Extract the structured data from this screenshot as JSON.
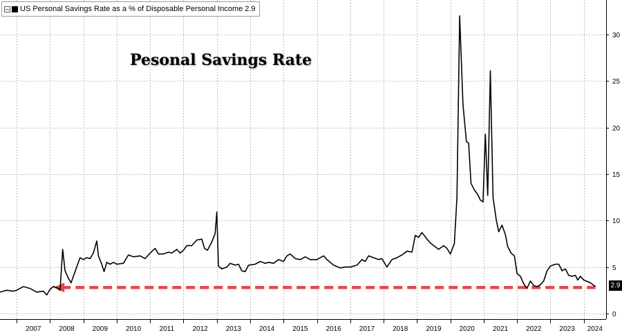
{
  "chart_data": {
    "type": "line",
    "title": "",
    "xlabel": "",
    "ylabel": "",
    "annotation": "Pesonal Savings Rate",
    "series": [
      {
        "name": "US Personal Savings Rate as a % of Disposable Personal Income",
        "last_value": "2.9",
        "color": "#000000",
        "points": [
          [
            2006.5,
            2.3
          ],
          [
            2006.7,
            2.5
          ],
          [
            2006.9,
            2.4
          ],
          [
            2007.0,
            2.5
          ],
          [
            2007.2,
            2.9
          ],
          [
            2007.4,
            2.7
          ],
          [
            2007.6,
            2.3
          ],
          [
            2007.8,
            2.4
          ],
          [
            2007.9,
            2.0
          ],
          [
            2008.0,
            2.6
          ],
          [
            2008.1,
            2.9
          ],
          [
            2008.2,
            2.8
          ],
          [
            2008.3,
            2.5
          ],
          [
            2008.38,
            6.9
          ],
          [
            2008.45,
            4.6
          ],
          [
            2008.55,
            3.8
          ],
          [
            2008.63,
            3.3
          ],
          [
            2008.75,
            4.5
          ],
          [
            2008.9,
            6.0
          ],
          [
            2009.0,
            5.8
          ],
          [
            2009.1,
            6.0
          ],
          [
            2009.2,
            5.9
          ],
          [
            2009.3,
            6.5
          ],
          [
            2009.4,
            7.8
          ],
          [
            2009.45,
            6.2
          ],
          [
            2009.55,
            5.3
          ],
          [
            2009.62,
            4.5
          ],
          [
            2009.7,
            5.5
          ],
          [
            2009.8,
            5.3
          ],
          [
            2009.9,
            5.5
          ],
          [
            2010.0,
            5.3
          ],
          [
            2010.2,
            5.4
          ],
          [
            2010.35,
            6.3
          ],
          [
            2010.5,
            6.1
          ],
          [
            2010.7,
            6.2
          ],
          [
            2010.85,
            5.9
          ],
          [
            2011.0,
            6.5
          ],
          [
            2011.15,
            7.0
          ],
          [
            2011.25,
            6.4
          ],
          [
            2011.4,
            6.4
          ],
          [
            2011.55,
            6.6
          ],
          [
            2011.65,
            6.5
          ],
          [
            2011.8,
            6.9
          ],
          [
            2011.9,
            6.5
          ],
          [
            2012.0,
            6.8
          ],
          [
            2012.1,
            7.3
          ],
          [
            2012.25,
            7.3
          ],
          [
            2012.4,
            7.9
          ],
          [
            2012.55,
            8.0
          ],
          [
            2012.63,
            7.0
          ],
          [
            2012.72,
            6.8
          ],
          [
            2012.85,
            7.7
          ],
          [
            2012.95,
            8.6
          ],
          [
            2013.0,
            10.9
          ],
          [
            2013.05,
            5.1
          ],
          [
            2013.15,
            4.8
          ],
          [
            2013.3,
            5.0
          ],
          [
            2013.4,
            5.4
          ],
          [
            2013.55,
            5.2
          ],
          [
            2013.65,
            5.3
          ],
          [
            2013.75,
            4.6
          ],
          [
            2013.85,
            4.5
          ],
          [
            2013.95,
            5.2
          ],
          [
            2014.15,
            5.3
          ],
          [
            2014.3,
            5.6
          ],
          [
            2014.45,
            5.4
          ],
          [
            2014.55,
            5.5
          ],
          [
            2014.7,
            5.4
          ],
          [
            2014.85,
            5.8
          ],
          [
            2015.0,
            5.6
          ],
          [
            2015.1,
            6.2
          ],
          [
            2015.2,
            6.4
          ],
          [
            2015.35,
            5.9
          ],
          [
            2015.5,
            5.8
          ],
          [
            2015.65,
            6.1
          ],
          [
            2015.8,
            5.8
          ],
          [
            2016.0,
            5.8
          ],
          [
            2016.2,
            6.2
          ],
          [
            2016.3,
            5.8
          ],
          [
            2016.5,
            5.2
          ],
          [
            2016.7,
            4.9
          ],
          [
            2016.85,
            5.0
          ],
          [
            2017.0,
            5.0
          ],
          [
            2017.2,
            5.2
          ],
          [
            2017.35,
            5.8
          ],
          [
            2017.45,
            5.6
          ],
          [
            2017.55,
            6.2
          ],
          [
            2017.7,
            6.0
          ],
          [
            2017.85,
            5.8
          ],
          [
            2017.95,
            5.9
          ],
          [
            2018.1,
            5.0
          ],
          [
            2018.25,
            5.8
          ],
          [
            2018.4,
            6.0
          ],
          [
            2018.55,
            6.3
          ],
          [
            2018.7,
            6.7
          ],
          [
            2018.85,
            6.6
          ],
          [
            2018.95,
            8.4
          ],
          [
            2019.05,
            8.2
          ],
          [
            2019.15,
            8.7
          ],
          [
            2019.3,
            8.0
          ],
          [
            2019.4,
            7.6
          ],
          [
            2019.5,
            7.3
          ],
          [
            2019.65,
            6.9
          ],
          [
            2019.8,
            7.3
          ],
          [
            2019.9,
            7.0
          ],
          [
            2020.0,
            6.4
          ],
          [
            2020.12,
            7.5
          ],
          [
            2020.2,
            12.5
          ],
          [
            2020.28,
            32.0
          ],
          [
            2020.38,
            22.5
          ],
          [
            2020.48,
            18.5
          ],
          [
            2020.55,
            18.3
          ],
          [
            2020.62,
            14.0
          ],
          [
            2020.72,
            13.3
          ],
          [
            2020.82,
            12.8
          ],
          [
            2020.9,
            12.2
          ],
          [
            2020.98,
            12.0
          ],
          [
            2021.05,
            19.3
          ],
          [
            2021.12,
            12.7
          ],
          [
            2021.2,
            26.1
          ],
          [
            2021.28,
            12.5
          ],
          [
            2021.38,
            10.0
          ],
          [
            2021.45,
            8.8
          ],
          [
            2021.55,
            9.5
          ],
          [
            2021.65,
            8.5
          ],
          [
            2021.72,
            7.2
          ],
          [
            2021.82,
            6.5
          ],
          [
            2021.92,
            6.2
          ],
          [
            2022.0,
            4.3
          ],
          [
            2022.1,
            4.0
          ],
          [
            2022.2,
            3.2
          ],
          [
            2022.3,
            2.7
          ],
          [
            2022.4,
            3.5
          ],
          [
            2022.5,
            3.0
          ],
          [
            2022.6,
            2.9
          ],
          [
            2022.7,
            3.1
          ],
          [
            2022.8,
            3.5
          ],
          [
            2022.9,
            4.6
          ],
          [
            2023.0,
            5.1
          ],
          [
            2023.15,
            5.3
          ],
          [
            2023.25,
            5.3
          ],
          [
            2023.35,
            4.6
          ],
          [
            2023.45,
            4.8
          ],
          [
            2023.55,
            4.1
          ],
          [
            2023.65,
            4.0
          ],
          [
            2023.75,
            4.1
          ],
          [
            2023.82,
            3.6
          ],
          [
            2023.9,
            4.0
          ],
          [
            2024.0,
            3.6
          ],
          [
            2024.2,
            3.3
          ],
          [
            2024.35,
            2.9
          ]
        ]
      }
    ],
    "x_ticks": [
      "2007",
      "2008",
      "2009",
      "2010",
      "2011",
      "2012",
      "2013",
      "2014",
      "2015",
      "2016",
      "2017",
      "2018",
      "2019",
      "2020",
      "2021",
      "2022",
      "2023",
      "2024"
    ],
    "y_ticks": [
      "0",
      "5",
      "10",
      "15",
      "20",
      "25",
      "30"
    ],
    "xlim": [
      2006.5,
      2024.67
    ],
    "ylim": [
      -0.6,
      33.7
    ],
    "grid": true,
    "legend_position": "top-left",
    "reference_line": {
      "from_x": 2008.1,
      "to_x": 2024.35,
      "y": 2.8,
      "color": "#e8474a",
      "style": "dashed-arrow"
    }
  },
  "legend": {
    "label": "US Personal Savings Rate as a % of Disposable Personal Income",
    "value": "2.9"
  },
  "colors": {
    "grid": "#bdbdbd",
    "line": "#000000",
    "arrow": "#e8474a"
  }
}
